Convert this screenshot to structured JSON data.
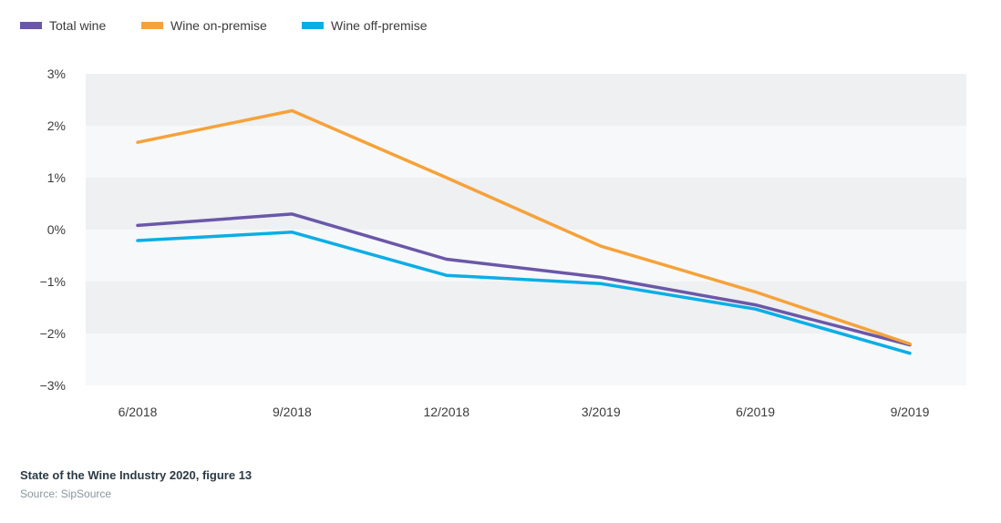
{
  "chart_data": {
    "type": "line",
    "categories": [
      "6/2018",
      "9/2018",
      "12/2018",
      "3/2019",
      "6/2019",
      "9/2019"
    ],
    "ylim": [
      -3,
      3
    ],
    "yticks": [
      3,
      2,
      1,
      0,
      -1,
      -2,
      -3
    ],
    "ytick_labels": [
      "3%",
      "2%",
      "1%",
      "0%",
      "−1%",
      "−2%",
      "−3%"
    ],
    "grid": "alternating horizontal bands",
    "legend_position": "top-left",
    "series": [
      {
        "name": "Total wine",
        "color": "#6b57a8",
        "values": [
          0.08,
          0.3,
          -0.57,
          -0.92,
          -1.45,
          -2.22
        ]
      },
      {
        "name": "Wine on-premise",
        "color": "#f6a23a",
        "values": [
          1.68,
          2.29,
          1.0,
          -0.32,
          -1.2,
          -2.2
        ]
      },
      {
        "name": "Wine off-premise",
        "color": "#0aaee6",
        "values": [
          -0.21,
          -0.05,
          -0.88,
          -1.04,
          -1.53,
          -2.38
        ]
      }
    ]
  },
  "caption": {
    "title": "State of the Wine Industry 2020, figure 13",
    "source": "Source: SipSource"
  }
}
